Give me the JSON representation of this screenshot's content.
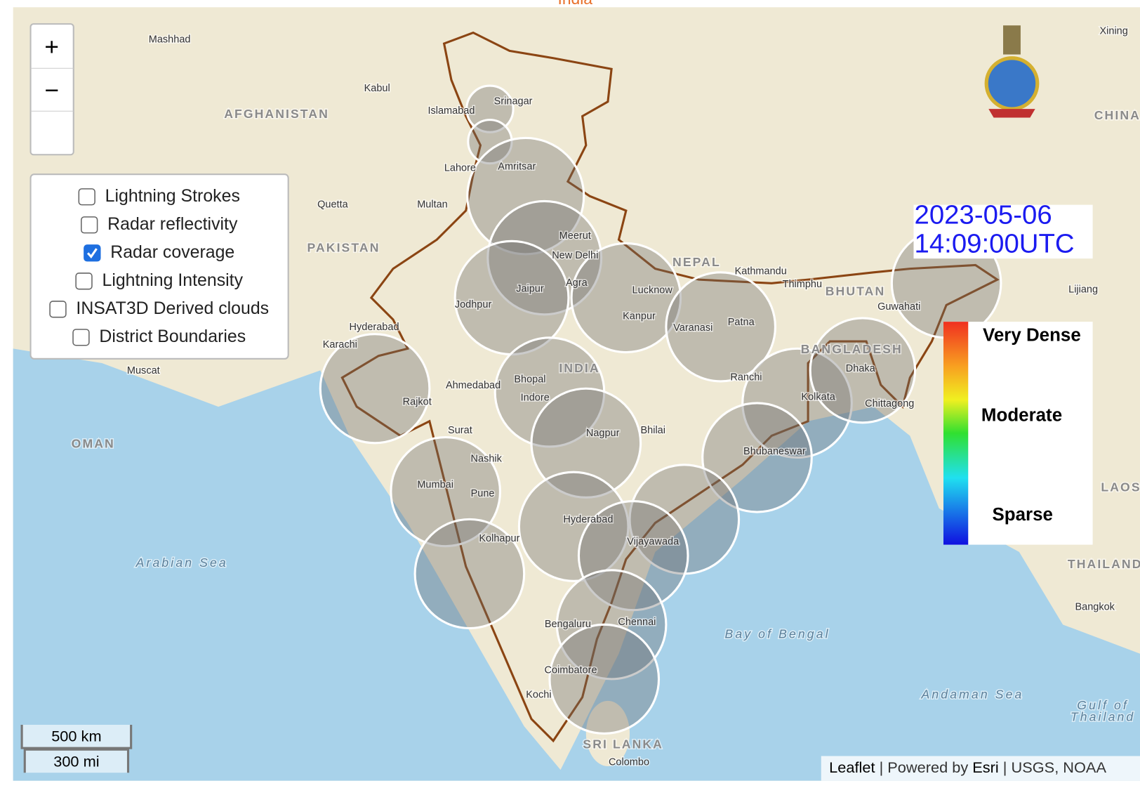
{
  "header": {
    "title": "India"
  },
  "layers": [
    {
      "label": "Lightning Strokes",
      "checked": false
    },
    {
      "label": "Radar reflectivity",
      "checked": false
    },
    {
      "label": "Radar coverage",
      "checked": true
    },
    {
      "label": "Lightning Intensity",
      "checked": false
    },
    {
      "label": "INSAT3D Derived clouds",
      "checked": false
    },
    {
      "label": "District Boundaries",
      "checked": false
    }
  ],
  "zoom": {
    "in": "+",
    "out": "−"
  },
  "timestamp": {
    "date": "2023-05-06",
    "time": "14:09:00UTC"
  },
  "legend": {
    "high": "Very Dense",
    "mid": "Moderate",
    "low": "Sparse"
  },
  "scale": {
    "metric": "500 km",
    "imperial": "300 mi"
  },
  "attribution": {
    "leaflet": "Leaflet",
    "sep1": " | Powered by ",
    "esri": "Esri",
    "sep2": " | USGS, NOAA"
  },
  "places": [
    "Mashhad",
    "Kabul",
    "AFGHANISTAN",
    "Islamabad",
    "Srinagar",
    "Lahore",
    "Amritsar",
    "Quetta",
    "Multan",
    "PAKISTAN",
    "Meerut",
    "New Delhi",
    "Jaipur",
    "Agra",
    "Jodhpur",
    "Lucknow",
    "Kanpur",
    "NEPAL",
    "Kathmandu",
    "Thimphu",
    "BHUTAN",
    "Guwahati",
    "Patna",
    "Varanasi",
    "Hyderabad",
    "Karachi",
    "Muscat",
    "Ahmedabad",
    "Bhopal",
    "INDIA",
    "Indore",
    "Rajkot",
    "Ranchi",
    "Dhaka",
    "BANGLADESH",
    "Kolkata",
    "Chittagong",
    "Surat",
    "Nagpur",
    "Bhilai",
    "Nashik",
    "Bhubaneswar",
    "OMAN",
    "Mumbai",
    "Pune",
    "Hyderabad",
    "Vijayawada",
    "Kolhapur",
    "Arabian Sea",
    "Bay of Bengal",
    "Bengaluru",
    "Chennai",
    "Coimbatore",
    "Kochi",
    "SRI LANKA",
    "Colombo",
    "Andaman Sea",
    "Gulf of",
    "Thailand",
    "THAILAND",
    "Bangkok",
    "LAOS",
    "CHINA",
    "Xining",
    "Lijiang"
  ]
}
